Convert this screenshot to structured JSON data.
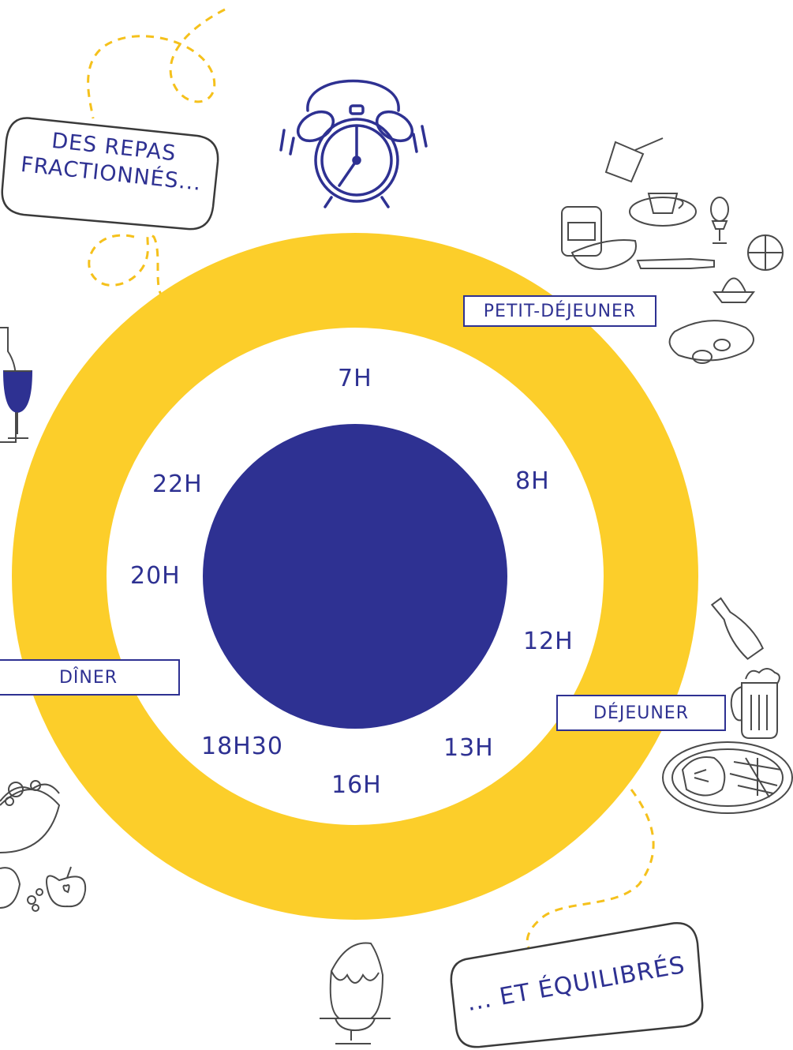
{
  "title": {
    "line1": "DES REPAS",
    "line2": "FRACTIONNÉS..."
  },
  "subtitle": "... ET ÉQUILIBRÉS",
  "meals": {
    "breakfast": "PETIT-DÉJEUNER",
    "lunch": "DÉJEUNER",
    "dinner": "DÎNER"
  },
  "hours": {
    "h7": "7H",
    "h8": "8H",
    "h12": "12H",
    "h13": "13H",
    "h16": "16H",
    "h1830": "18H30",
    "h20": "20H",
    "h22": "22H"
  },
  "colors": {
    "ring": "#fcce2a",
    "center": "#2e3192",
    "text": "#2e3192",
    "doodle": "#4a4a4a",
    "dashed": "#f5c11c"
  },
  "icons": [
    "alarm-clock-icon",
    "breakfast-items-icon",
    "wine-icon",
    "beer-bottle-icon",
    "steak-plate-icon",
    "salad-bowl-icon",
    "fruits-icon",
    "pudding-icon"
  ]
}
